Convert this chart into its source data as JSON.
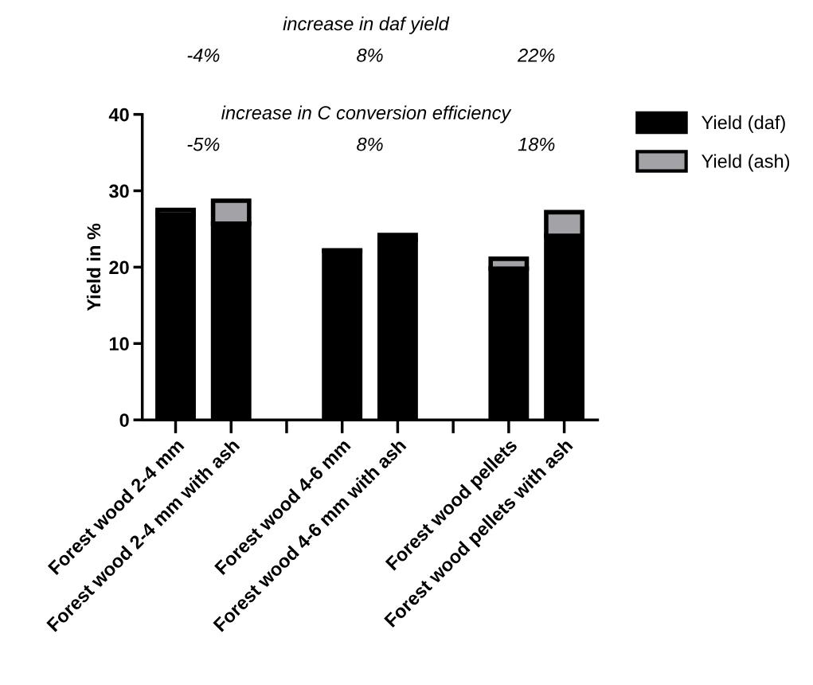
{
  "chart_data": {
    "type": "bar",
    "stacked": true,
    "ylabel": "Yield in %",
    "categories": [
      "Forest wood 2-4 mm",
      "Forest wood 2-4 mm with ash",
      null,
      "Forest wood 4-6 mm",
      "Forest wood 4-6 mm with ash",
      null,
      "Forest wood pellets",
      "Forest wood pellets with ash"
    ],
    "series": [
      {
        "name": "Yield (daf)",
        "color": "#000000",
        "values": [
          26.9,
          25.7,
          null,
          22.1,
          23.6,
          null,
          19.8,
          24.1
        ]
      },
      {
        "name": "Yield (ash)",
        "color": "#a3a2a6",
        "values": [
          0.6,
          3.0,
          null,
          0.1,
          0.6,
          null,
          1.3,
          3.1
        ]
      }
    ],
    "ylim": [
      0,
      40
    ],
    "yticks": [
      0,
      10,
      20,
      30,
      40
    ],
    "grid": false,
    "legend": "top right",
    "annotations": [
      "increase in daf yield",
      "-4%",
      "8%",
      "22%",
      "increase in C conversion efficiency",
      "-5%",
      "8%",
      "18%"
    ]
  }
}
